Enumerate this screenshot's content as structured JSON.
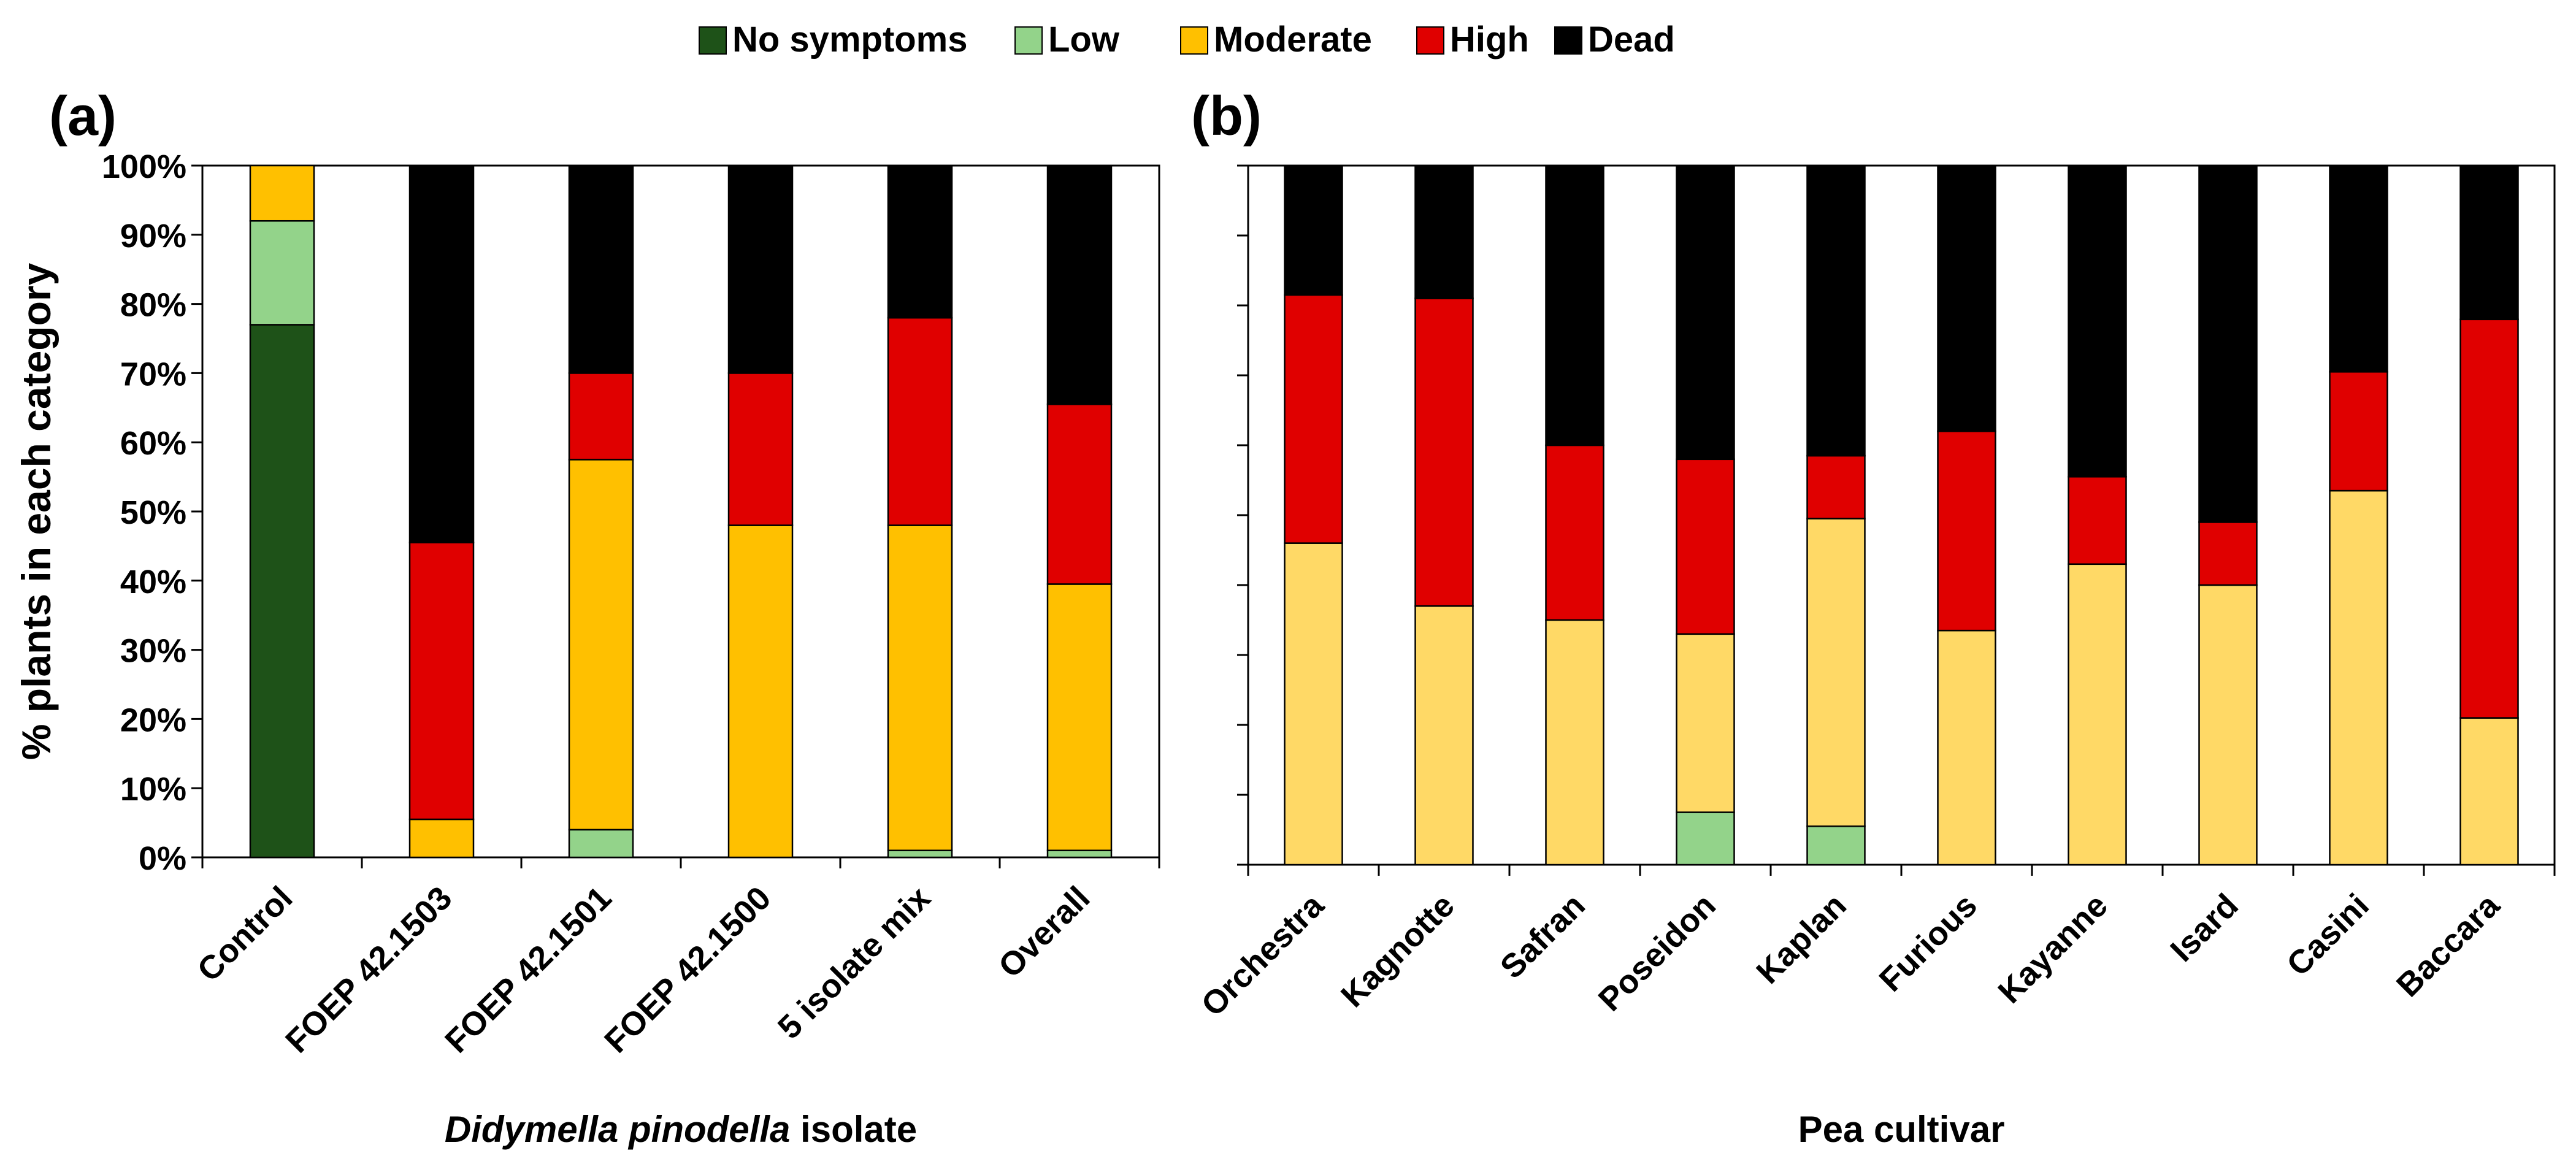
{
  "legend": [
    {
      "label": "No symptoms",
      "color": "#1e5218"
    },
    {
      "label": "Low",
      "color": "#93d38a"
    },
    {
      "label": "Moderate",
      "color": "#ffc000"
    },
    {
      "label": "High",
      "color": "#e00000"
    },
    {
      "label": "Dead",
      "color": "#000000"
    }
  ],
  "chart_data": [
    {
      "type": "bar",
      "stacked": true,
      "panel_label": "(a)",
      "title": "",
      "xlabel_italic": "Didymella pinodella",
      "xlabel_rest": " isolate",
      "ylabel": "% plants in each category",
      "ylim": [
        0,
        100
      ],
      "yticks": [
        "0%",
        "10%",
        "20%",
        "30%",
        "40%",
        "50%",
        "60%",
        "70%",
        "80%",
        "90%",
        "100%"
      ],
      "categories": [
        "Control",
        "FOEP 42.1503",
        "FOEP 42.1501",
        "FOEP 42.1500",
        "5 isolate  mix",
        "Overall"
      ],
      "series": [
        {
          "name": "No symptoms",
          "color": "#1e5218",
          "values": [
            77,
            0,
            0,
            0,
            0,
            0
          ]
        },
        {
          "name": "Low",
          "color": "#93d38a",
          "values": [
            15,
            0,
            4,
            0,
            1,
            1
          ]
        },
        {
          "name": "Moderate",
          "color": "#ffc000",
          "values": [
            8,
            5.5,
            53.5,
            48,
            47,
            38.5
          ]
        },
        {
          "name": "High",
          "color": "#e00000",
          "values": [
            0,
            40,
            12.5,
            22,
            30,
            26
          ]
        },
        {
          "name": "Dead",
          "color": "#000000",
          "values": [
            0,
            54.5,
            30,
            30,
            22,
            34.5
          ]
        }
      ]
    },
    {
      "type": "bar",
      "stacked": true,
      "panel_label": "(b)",
      "title": "",
      "xlabel": "Pea cultivar",
      "ylabel": "",
      "ylim": [
        0,
        100
      ],
      "categories": [
        "Orchestra",
        "Kagnotte",
        "Safran",
        "Poseidon",
        "Kaplan",
        "Furious",
        "Kayanne",
        "Isard",
        "Casini",
        "Baccara"
      ],
      "series": [
        {
          "name": "No symptoms",
          "color": "#1e5218",
          "values": [
            0,
            0,
            0,
            0,
            0,
            0,
            0,
            0,
            0,
            0
          ]
        },
        {
          "name": "Low",
          "color": "#93d38a",
          "values": [
            0,
            0,
            0,
            7.5,
            5.5,
            0,
            0,
            0,
            0,
            0
          ]
        },
        {
          "name": "Moderate",
          "color": "#ffd966",
          "values": [
            46,
            37,
            35,
            25.5,
            44,
            33.5,
            43,
            40,
            53.5,
            21
          ]
        },
        {
          "name": "High",
          "color": "#e00000",
          "values": [
            35.5,
            44,
            25,
            25,
            9,
            28.5,
            12.5,
            9,
            17,
            57
          ]
        },
        {
          "name": "Dead",
          "color": "#000000",
          "values": [
            18.5,
            19,
            40,
            42,
            41.5,
            38,
            44.5,
            51,
            29.5,
            22
          ]
        }
      ]
    }
  ]
}
